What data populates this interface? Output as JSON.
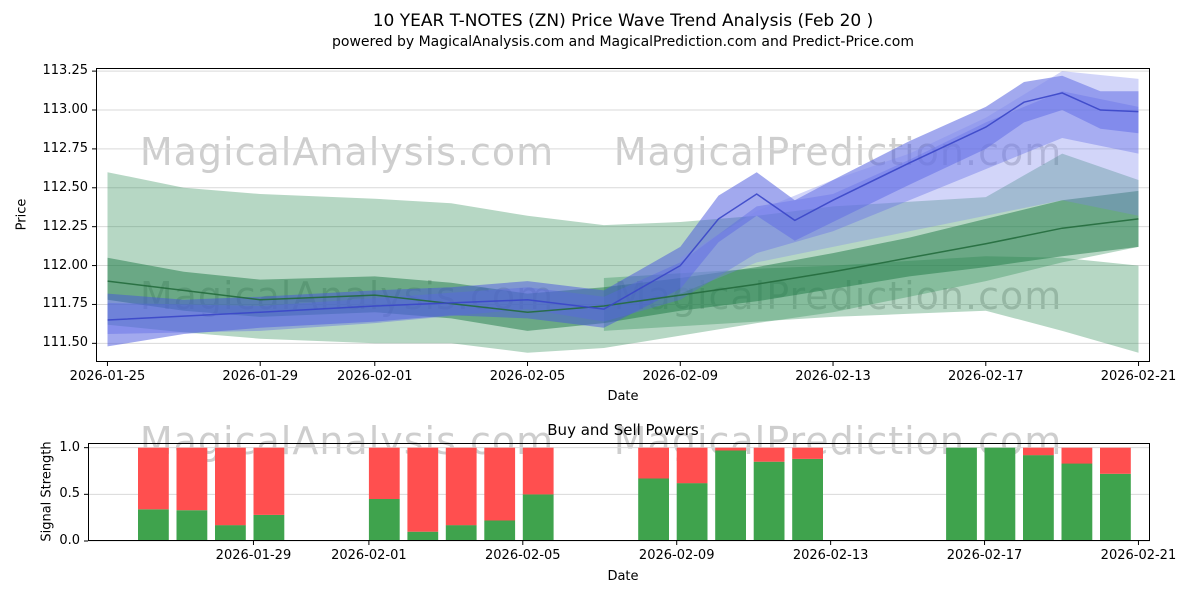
{
  "page": {
    "title_line1": "10 YEAR T-NOTES (ZN) Price Wave Trend Analysis (Feb 20 )",
    "title_line2": "powered by MagicalAnalysis.com and MagicalPrediction.com and Predict-Price.com"
  },
  "watermarks": {
    "analysis": "MagicalAnalysis.com",
    "prediction": "MagicalPrediction.com"
  },
  "colors": {
    "grid": "#d9d9d9",
    "axis": "#000000",
    "buy": "#3fa34d",
    "sell": "#ff4f4f"
  },
  "chart_data": [
    {
      "id": "price",
      "type": "area",
      "title": "",
      "xlabel": "Date",
      "ylabel": "Price",
      "grid": "horizontal",
      "xlim_days": [
        -0.3,
        27.3
      ],
      "ylim": [
        111.38,
        113.27
      ],
      "x_ticks": [
        {
          "label": "2026-01-25",
          "day": 0
        },
        {
          "label": "2026-01-29",
          "day": 4
        },
        {
          "label": "2026-02-01",
          "day": 7
        },
        {
          "label": "2026-02-05",
          "day": 11
        },
        {
          "label": "2026-02-09",
          "day": 15
        },
        {
          "label": "2026-02-13",
          "day": 19
        },
        {
          "label": "2026-02-17",
          "day": 23
        },
        {
          "label": "2026-02-21",
          "day": 27
        }
      ],
      "y_ticks": [
        {
          "label": "111.50",
          "value": 111.5
        },
        {
          "label": "111.75",
          "value": 111.75
        },
        {
          "label": "112.00",
          "value": 112.0
        },
        {
          "label": "112.25",
          "value": 112.25
        },
        {
          "label": "112.50",
          "value": 112.5
        },
        {
          "label": "112.75",
          "value": 112.75
        },
        {
          "label": "113.00",
          "value": 113.0
        },
        {
          "label": "113.25",
          "value": 113.25
        }
      ],
      "bands": [
        {
          "name": "green-wide",
          "color": "#2e8b57",
          "alpha": 0.35,
          "x": [
            0,
            2,
            4,
            7,
            9,
            11,
            13,
            15,
            17,
            19,
            21,
            23,
            25,
            27
          ],
          "upper": [
            112.6,
            112.5,
            112.46,
            112.43,
            112.4,
            112.32,
            112.26,
            112.28,
            112.32,
            112.38,
            112.41,
            112.44,
            112.72,
            112.55
          ],
          "lower": [
            111.62,
            111.57,
            111.53,
            111.5,
            111.5,
            111.44,
            111.47,
            111.55,
            111.63,
            111.7,
            111.8,
            111.9,
            112.02,
            112.12
          ]
        },
        {
          "name": "green-lower-wedge",
          "color": "#2e8b57",
          "alpha": 0.35,
          "x": [
            13,
            15,
            17,
            19,
            21,
            23,
            25,
            27
          ],
          "upper": [
            111.92,
            111.95,
            111.98,
            112.0,
            112.03,
            112.06,
            112.05,
            112.0
          ],
          "lower": [
            111.58,
            111.61,
            111.64,
            111.67,
            111.69,
            111.71,
            111.58,
            111.44
          ]
        },
        {
          "name": "green-dark",
          "color": "#1e7a46",
          "alpha": 0.5,
          "x": [
            0,
            2,
            4,
            7,
            9,
            11,
            13,
            15,
            17,
            19,
            21,
            23,
            25,
            27
          ],
          "upper": [
            112.05,
            111.96,
            111.91,
            111.93,
            111.89,
            111.82,
            111.86,
            111.92,
            111.99,
            112.08,
            112.18,
            112.3,
            112.42,
            112.48
          ],
          "lower": [
            111.78,
            111.71,
            111.67,
            111.7,
            111.66,
            111.58,
            111.63,
            111.71,
            111.77,
            111.85,
            111.93,
            111.99,
            112.06,
            112.12
          ]
        },
        {
          "name": "blue-main",
          "color": "#4553de",
          "alpha": 0.5,
          "x": [
            0,
            2,
            4,
            7,
            9,
            11,
            13,
            15,
            16,
            17,
            18,
            19,
            21,
            23,
            24,
            25,
            26,
            27
          ],
          "upper": [
            111.82,
            111.78,
            111.8,
            111.84,
            111.86,
            111.9,
            111.84,
            112.12,
            112.45,
            112.6,
            112.42,
            112.55,
            112.8,
            113.02,
            113.18,
            113.22,
            113.12,
            113.12
          ],
          "lower": [
            111.48,
            111.56,
            111.6,
            111.64,
            111.68,
            111.66,
            111.6,
            111.85,
            112.15,
            112.32,
            112.16,
            112.28,
            112.52,
            112.75,
            112.92,
            113.0,
            112.88,
            112.85
          ]
        },
        {
          "name": "blue-secondary",
          "color": "#5a67e6",
          "alpha": 0.4,
          "x": [
            0,
            4,
            7,
            11,
            13,
            15,
            17,
            19,
            21,
            23,
            25,
            27
          ],
          "upper": [
            111.76,
            111.74,
            111.79,
            111.86,
            111.8,
            112.02,
            112.38,
            112.46,
            112.68,
            112.92,
            113.12,
            113.02
          ],
          "lower": [
            111.56,
            111.58,
            111.63,
            111.72,
            111.64,
            111.78,
            112.08,
            112.22,
            112.42,
            112.62,
            112.82,
            112.72
          ]
        },
        {
          "name": "blue-fan",
          "color": "#7d88ef",
          "alpha": 0.35,
          "x": [
            15,
            17,
            19,
            21,
            23,
            25,
            27
          ],
          "upper": [
            112.05,
            112.35,
            112.55,
            112.72,
            112.95,
            113.25,
            113.2
          ],
          "lower": [
            111.82,
            112.02,
            112.12,
            112.22,
            112.32,
            112.42,
            112.32
          ]
        }
      ],
      "lines": [
        {
          "name": "green-trend",
          "color": "#246b3d",
          "x": [
            0,
            4,
            7,
            11,
            13,
            15,
            17,
            19,
            21,
            23,
            25,
            27
          ],
          "y": [
            111.9,
            111.78,
            111.81,
            111.7,
            111.74,
            111.81,
            111.88,
            111.96,
            112.05,
            112.14,
            112.24,
            112.3
          ]
        },
        {
          "name": "blue-trend",
          "color": "#3a46c8",
          "x": [
            0,
            4,
            7,
            11,
            13,
            15,
            16,
            17,
            18,
            19,
            21,
            23,
            24,
            25,
            26,
            27
          ],
          "y": [
            111.65,
            111.7,
            111.74,
            111.78,
            111.72,
            112.0,
            112.3,
            112.46,
            112.29,
            112.42,
            112.66,
            112.89,
            113.05,
            113.11,
            113.0,
            112.99
          ]
        }
      ]
    },
    {
      "id": "signals",
      "type": "bar",
      "title": "Buy and Sell Powers",
      "xlabel": "Date",
      "ylabel": "Signal Strength",
      "grid": "horizontal",
      "xlim_days": [
        -0.3,
        27.3
      ],
      "ylim": [
        0,
        1.05
      ],
      "bar_width_days": 0.8,
      "stacked_series": [
        "buy",
        "sell"
      ],
      "x_ticks": [
        {
          "label": "2026-01-29",
          "day": 4
        },
        {
          "label": "2026-02-01",
          "day": 7
        },
        {
          "label": "2026-02-05",
          "day": 11
        },
        {
          "label": "2026-02-09",
          "day": 15
        },
        {
          "label": "2026-02-13",
          "day": 19
        },
        {
          "label": "2026-02-17",
          "day": 23
        },
        {
          "label": "2026-02-21",
          "day": 27
        }
      ],
      "y_ticks": [
        {
          "label": "0.0",
          "value": 0.0
        },
        {
          "label": "0.5",
          "value": 0.5
        },
        {
          "label": "1.0",
          "value": 1.0
        }
      ],
      "bars": [
        {
          "date": "2026-01-26",
          "day": 1,
          "buy": 0.34,
          "sell": 0.66
        },
        {
          "date": "2026-01-27",
          "day": 2,
          "buy": 0.33,
          "sell": 0.67
        },
        {
          "date": "2026-01-28",
          "day": 3,
          "buy": 0.17,
          "sell": 0.83
        },
        {
          "date": "2026-01-29",
          "day": 4,
          "buy": 0.28,
          "sell": 0.72
        },
        {
          "date": "2026-02-01",
          "day": 7,
          "buy": 0.45,
          "sell": 0.55
        },
        {
          "date": "2026-02-02",
          "day": 8,
          "buy": 0.1,
          "sell": 0.9
        },
        {
          "date": "2026-02-03",
          "day": 9,
          "buy": 0.17,
          "sell": 0.83
        },
        {
          "date": "2026-02-04",
          "day": 10,
          "buy": 0.22,
          "sell": 0.78
        },
        {
          "date": "2026-02-05",
          "day": 11,
          "buy": 0.5,
          "sell": 0.5
        },
        {
          "date": "2026-02-08",
          "day": 14,
          "buy": 0.67,
          "sell": 0.33
        },
        {
          "date": "2026-02-09",
          "day": 15,
          "buy": 0.62,
          "sell": 0.38
        },
        {
          "date": "2026-02-10",
          "day": 16,
          "buy": 0.97,
          "sell": 0.03
        },
        {
          "date": "2026-02-11",
          "day": 17,
          "buy": 0.85,
          "sell": 0.15
        },
        {
          "date": "2026-02-12",
          "day": 18,
          "buy": 0.88,
          "sell": 0.12
        },
        {
          "date": "2026-02-16",
          "day": 22,
          "buy": 1.0,
          "sell": 0.0
        },
        {
          "date": "2026-02-17",
          "day": 23,
          "buy": 1.0,
          "sell": 0.0
        },
        {
          "date": "2026-02-18",
          "day": 24,
          "buy": 0.92,
          "sell": 0.08
        },
        {
          "date": "2026-02-19",
          "day": 25,
          "buy": 0.83,
          "sell": 0.17
        },
        {
          "date": "2026-02-20",
          "day": 26,
          "buy": 0.72,
          "sell": 0.28
        }
      ]
    }
  ]
}
